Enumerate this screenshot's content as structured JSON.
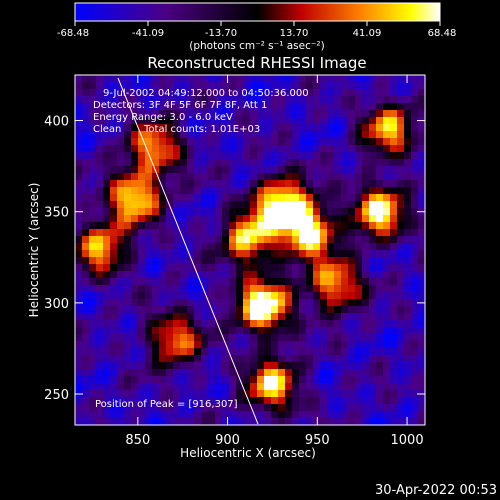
{
  "colorbar": {
    "tick_labels": [
      "-68.48",
      "-41.09",
      "-13.70",
      "13.70",
      "41.09",
      "68.48"
    ],
    "range": [
      -68.48,
      68.48
    ],
    "units": "(photons cm⁻² s⁻¹ asec⁻²)"
  },
  "chart_data": {
    "type": "heatmap",
    "title": "Reconstructed RHESSI Image",
    "xlabel": "Heliocentric X (arcsec)",
    "ylabel": "Heliocentric Y (arcsec)",
    "xlim": [
      815,
      1010
    ],
    "ylim": [
      233,
      425
    ],
    "x_ticks": [
      "850",
      "900",
      "950",
      "1000"
    ],
    "y_ticks": [
      "400",
      "350",
      "300",
      "250"
    ],
    "color_scale": [
      "#0000ff",
      "#4b0082",
      "#000000",
      "#c00000",
      "#ff7f00",
      "#ffff00",
      "#ffffff"
    ],
    "bright_sources": [
      {
        "x": 920,
        "y": 298,
        "value": 68.48
      },
      {
        "x": 945,
        "y": 340,
        "value": 55
      },
      {
        "x": 930,
        "y": 355,
        "value": 50
      },
      {
        "x": 985,
        "y": 350,
        "value": 48
      },
      {
        "x": 848,
        "y": 358,
        "value": 45
      },
      {
        "x": 912,
        "y": 335,
        "value": 42
      },
      {
        "x": 960,
        "y": 310,
        "value": 35
      },
      {
        "x": 925,
        "y": 255,
        "value": 40
      },
      {
        "x": 830,
        "y": 330,
        "value": 30
      },
      {
        "x": 860,
        "y": 385,
        "value": 28
      },
      {
        "x": 990,
        "y": 395,
        "value": 30
      },
      {
        "x": 870,
        "y": 280,
        "value": 25
      }
    ],
    "annotations": {
      "time_range": "9-Jul-2002 04:49:12.000 to 04:50:36.000",
      "detectors": "Detectors: 3F 4F 5F 6F 7F 8F, Att 1",
      "energy": "Energy Range: 3.0 - 6.0 keV",
      "method": "Clean",
      "counts": "Total counts: 1.01E+03",
      "peak": "Position of Peak = [916,307]"
    }
  },
  "footer": {
    "timestamp": "30-Apr-2022 00:53"
  }
}
